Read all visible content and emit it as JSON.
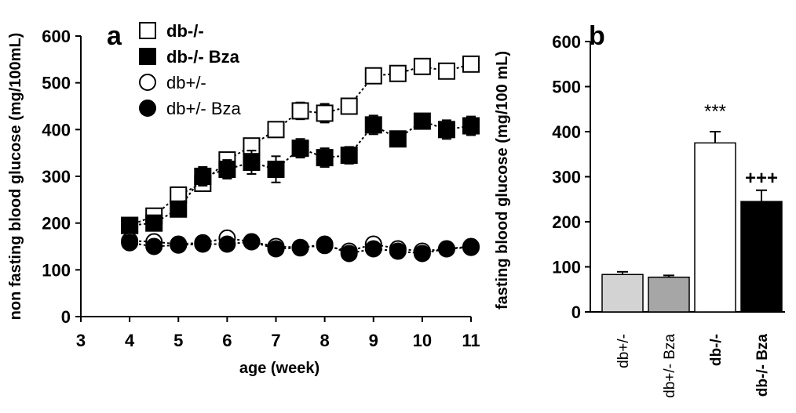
{
  "chart_data": [
    {
      "type": "line",
      "panel_label": "a",
      "xlabel": "age (week)",
      "ylabel": "non fasting blood glucose (mg/100mL)",
      "xlim": [
        3,
        11
      ],
      "ylim": [
        0,
        600
      ],
      "xticks": [
        3,
        4,
        5,
        6,
        7,
        8,
        9,
        10,
        11
      ],
      "yticks": [
        0,
        100,
        200,
        300,
        400,
        500,
        600
      ],
      "legend_position": "top-left",
      "series": [
        {
          "name": "db-/-",
          "marker": "square-open",
          "x": [
            4,
            4.5,
            5,
            5.5,
            6,
            6.5,
            7,
            7.5,
            8,
            8.5,
            9,
            9.5,
            10,
            10.5,
            11
          ],
          "y": [
            195,
            215,
            260,
            285,
            335,
            365,
            400,
            440,
            435,
            450,
            515,
            520,
            535,
            525,
            540
          ],
          "err": [
            10,
            12,
            15,
            15,
            15,
            15,
            15,
            18,
            20,
            15,
            15,
            12,
            15,
            15,
            15
          ]
        },
        {
          "name": "db-/- Bza",
          "marker": "square-filled",
          "x": [
            4,
            4.5,
            5,
            5.5,
            6,
            6.5,
            7,
            7.5,
            8,
            8.5,
            9,
            9.5,
            10,
            10.5,
            11
          ],
          "y": [
            195,
            200,
            230,
            300,
            315,
            330,
            315,
            360,
            340,
            345,
            410,
            380,
            418,
            400,
            408
          ],
          "err": [
            10,
            12,
            12,
            20,
            20,
            25,
            28,
            20,
            20,
            18,
            20,
            15,
            15,
            20,
            20
          ]
        },
        {
          "name": "db+/-",
          "marker": "circle-open",
          "x": [
            4,
            4.5,
            5,
            5.5,
            6,
            6.5,
            7,
            7.5,
            8,
            8.5,
            9,
            9.5,
            10,
            10.5,
            11
          ],
          "y": [
            162,
            160,
            155,
            158,
            168,
            160,
            150,
            148,
            152,
            140,
            155,
            145,
            140,
            145,
            150
          ],
          "err": [
            10,
            12,
            10,
            10,
            10,
            12,
            12,
            10,
            10,
            10,
            10,
            10,
            10,
            10,
            10
          ]
        },
        {
          "name": "db+/- Bza",
          "marker": "circle-filled",
          "x": [
            4,
            4.5,
            5,
            5.5,
            6,
            6.5,
            7,
            7.5,
            8,
            8.5,
            9,
            9.5,
            10,
            10.5,
            11
          ],
          "y": [
            158,
            150,
            153,
            155,
            155,
            160,
            145,
            147,
            155,
            135,
            145,
            140,
            135,
            145,
            148
          ],
          "err": [
            10,
            10,
            10,
            10,
            10,
            12,
            12,
            10,
            10,
            12,
            10,
            10,
            10,
            10,
            10
          ]
        }
      ],
      "legend": [
        {
          "label": "db-/-",
          "marker": "square-open",
          "bold": true
        },
        {
          "label": "db-/- Bza",
          "marker": "square-filled",
          "bold": true
        },
        {
          "label": "db+/-",
          "marker": "circle-open",
          "bold": false
        },
        {
          "label": "db+/- Bza",
          "marker": "circle-filled",
          "bold": false
        }
      ]
    },
    {
      "type": "bar",
      "panel_label": "b",
      "xlabel": "",
      "ylabel": "fasting blood glucose (mg/100 mL)",
      "ylim": [
        0,
        600
      ],
      "yticks": [
        0,
        100,
        200,
        300,
        400,
        500,
        600
      ],
      "categories": [
        "db+/-",
        "db+/- Bza",
        "db-/-",
        "db-/- Bza"
      ],
      "category_bold": [
        false,
        false,
        true,
        true
      ],
      "values": [
        83,
        77,
        375,
        245
      ],
      "errors": [
        6,
        4,
        25,
        25
      ],
      "colors": [
        "#d3d3d3",
        "#a6a6a6",
        "#ffffff",
        "#000000"
      ],
      "annotations": [
        "",
        "",
        "***",
        "+++"
      ]
    }
  ]
}
